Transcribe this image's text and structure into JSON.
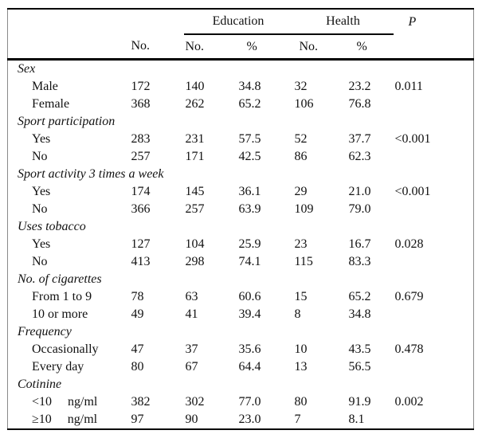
{
  "table": {
    "header": {
      "education_group": "Education",
      "health_group": "Health",
      "p_label": "P",
      "total_no_label": "No.",
      "edu_no_label": "No.",
      "edu_pct_label": "%",
      "health_no_label": "No.",
      "health_pct_label": "%"
    },
    "columns": [
      "label",
      "no",
      "edu_no",
      "edu_pct",
      "h_no",
      "h_pct",
      "p"
    ],
    "sections": [
      {
        "label": "Sex",
        "rows": [
          {
            "label": "Male",
            "no": "172",
            "edu_no": "140",
            "edu_pct": "34.8",
            "h_no": "32",
            "h_pct": "23.2",
            "p": "0.011"
          },
          {
            "label": "Female",
            "no": "368",
            "edu_no": "262",
            "edu_pct": "65.2",
            "h_no": "106",
            "h_pct": "76.8",
            "p": ""
          }
        ]
      },
      {
        "label": "Sport participation",
        "rows": [
          {
            "label": "Yes",
            "no": "283",
            "edu_no": "231",
            "edu_pct": "57.5",
            "h_no": "52",
            "h_pct": "37.7",
            "p": "<0.001"
          },
          {
            "label": "No",
            "no": "257",
            "edu_no": "171",
            "edu_pct": "42.5",
            "h_no": "86",
            "h_pct": "62.3",
            "p": ""
          }
        ]
      },
      {
        "label": "Sport activity 3 times a week",
        "rows": [
          {
            "label": "Yes",
            "no": "174",
            "edu_no": "145",
            "edu_pct": "36.1",
            "h_no": "29",
            "h_pct": "21.0",
            "p": "<0.001"
          },
          {
            "label": "No",
            "no": "366",
            "edu_no": "257",
            "edu_pct": "63.9",
            "h_no": "109",
            "h_pct": "79.0",
            "p": ""
          }
        ]
      },
      {
        "label": "Uses tobacco",
        "rows": [
          {
            "label": "Yes",
            "no": "127",
            "edu_no": "104",
            "edu_pct": "25.9",
            "h_no": "23",
            "h_pct": "16.7",
            "p": "0.028"
          },
          {
            "label": "No",
            "no": "413",
            "edu_no": "298",
            "edu_pct": "74.1",
            "h_no": "115",
            "h_pct": "83.3",
            "p": ""
          }
        ]
      },
      {
        "label": "No. of cigarettes",
        "rows": [
          {
            "label": "From 1 to 9",
            "no": "78",
            "edu_no": "63",
            "edu_pct": "60.6",
            "h_no": "15",
            "h_pct": "65.2",
            "p": "0.679"
          },
          {
            "label": "10 or more",
            "no": "49",
            "edu_no": "41",
            "edu_pct": "39.4",
            "h_no": "8",
            "h_pct": "34.8",
            "p": ""
          }
        ]
      },
      {
        "label": "Frequency",
        "rows": [
          {
            "label": "Occasionally",
            "no": "47",
            "edu_no": "37",
            "edu_pct": "35.6",
            "h_no": "10",
            "h_pct": "43.5",
            "p": "0.478"
          },
          {
            "label": "Every day",
            "no": "80",
            "edu_no": "67",
            "edu_pct": "64.4",
            "h_no": "13",
            "h_pct": "56.5",
            "p": ""
          }
        ]
      },
      {
        "label": "Cotinine",
        "rows": [
          {
            "label": "<10     ng/ml",
            "no": "382",
            "edu_no": "302",
            "edu_pct": "77.0",
            "h_no": "80",
            "h_pct": "91.9",
            "p": "0.002"
          },
          {
            "label": "≥10     ng/ml",
            "no": "97",
            "edu_no": "90",
            "edu_pct": "23.0",
            "h_no": "7",
            "h_pct": "8.1",
            "p": ""
          }
        ]
      }
    ]
  }
}
